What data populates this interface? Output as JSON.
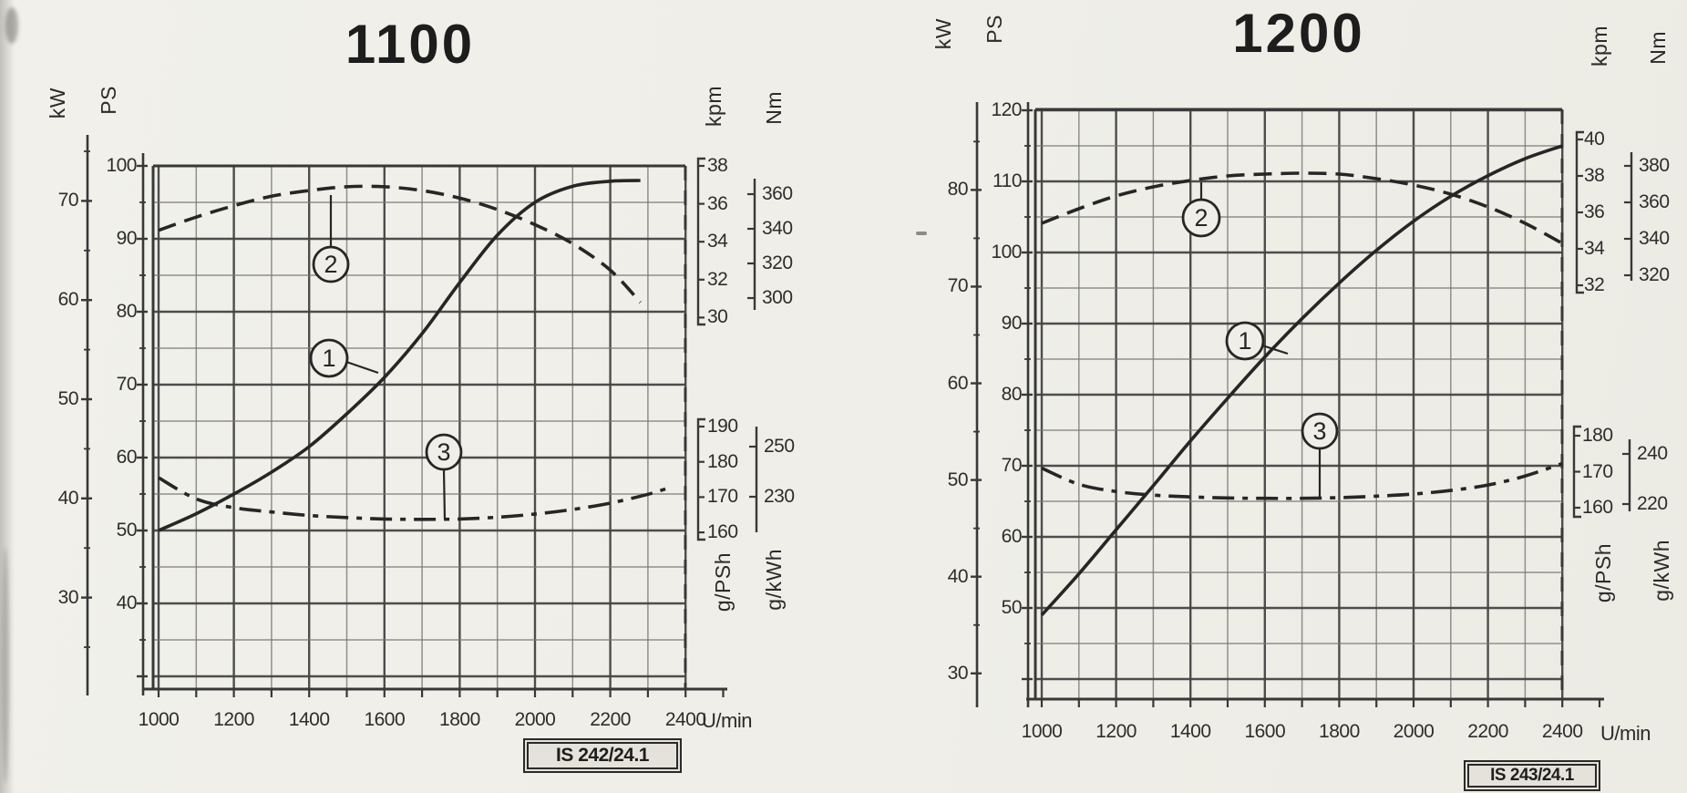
{
  "page": {
    "background": "#efeee8",
    "ink": "#262626",
    "grid_color": "#787878",
    "grid_bold_color": "#454545",
    "frame_color": "#383838"
  },
  "chart_data": [
    {
      "id": "1100",
      "type": "line",
      "title": "1100",
      "badge": "IS 242/24.1",
      "x_axis": {
        "unit": "U/min",
        "range": [
          1000,
          2400
        ],
        "grid_step": 100,
        "ticks": [
          1000,
          1200,
          1400,
          1600,
          1800,
          2000,
          2200,
          2400
        ]
      },
      "ps_grid": {
        "min": 30,
        "max": 100,
        "step": 5
      },
      "left_axes": [
        {
          "unit": "kW",
          "ticks": [
            70,
            60,
            50,
            40,
            30
          ]
        },
        {
          "unit": "PS",
          "ticks": [
            100,
            90,
            80,
            70,
            60,
            50,
            40
          ]
        }
      ],
      "right_axes": [
        {
          "unit": "kpm",
          "ticks": [
            38,
            36,
            34,
            32,
            30
          ]
        },
        {
          "unit": "Nm",
          "ticks": [
            360,
            340,
            320,
            300
          ]
        },
        {
          "unit": "g/PSh",
          "ticks": [
            190,
            180,
            170,
            160
          ]
        },
        {
          "unit": "g/kWh",
          "ticks": [
            250,
            230
          ]
        }
      ],
      "series": [
        {
          "label": "1",
          "unit": "PS",
          "style": "solid",
          "points": [
            [
              1000,
              50
            ],
            [
              1100,
              52.3
            ],
            [
              1200,
              55
            ],
            [
              1300,
              58
            ],
            [
              1400,
              61.5
            ],
            [
              1500,
              66
            ],
            [
              1600,
              71
            ],
            [
              1700,
              77
            ],
            [
              1800,
              84
            ],
            [
              1900,
              90.5
            ],
            [
              2000,
              95
            ],
            [
              2100,
              97.2
            ],
            [
              2200,
              97.9
            ],
            [
              2280,
              98
            ]
          ]
        },
        {
          "label": "2",
          "unit": "kpm",
          "style": "dashed",
          "points": [
            [
              1000,
              34.6
            ],
            [
              1100,
              35.3
            ],
            [
              1200,
              35.9
            ],
            [
              1300,
              36.4
            ],
            [
              1400,
              36.7
            ],
            [
              1500,
              36.9
            ],
            [
              1600,
              36.9
            ],
            [
              1700,
              36.7
            ],
            [
              1800,
              36.3
            ],
            [
              1900,
              35.7
            ],
            [
              2000,
              34.9
            ],
            [
              2100,
              33.9
            ],
            [
              2200,
              32.5
            ],
            [
              2280,
              30.8
            ]
          ]
        },
        {
          "label": "3",
          "unit": "g/PSh",
          "style": "dashdot",
          "points": [
            [
              1000,
              175.5
            ],
            [
              1100,
              169.5
            ],
            [
              1200,
              167
            ],
            [
              1300,
              165.8
            ],
            [
              1400,
              164.8
            ],
            [
              1500,
              164.2
            ],
            [
              1600,
              163.8
            ],
            [
              1700,
              163.7
            ],
            [
              1800,
              163.8
            ],
            [
              1900,
              164.3
            ],
            [
              2000,
              165.2
            ],
            [
              2100,
              166.5
            ],
            [
              2200,
              168.3
            ],
            [
              2300,
              170.8
            ],
            [
              2360,
              172.8
            ]
          ]
        }
      ]
    },
    {
      "id": "1200",
      "type": "line",
      "title": "1200",
      "badge": "IS 243/24.1",
      "x_axis": {
        "unit": "U/min",
        "range": [
          1000,
          2400
        ],
        "grid_step": 100,
        "ticks": [
          1000,
          1200,
          1400,
          1600,
          1800,
          2000,
          2200,
          2400
        ]
      },
      "ps_grid": {
        "min": 40,
        "max": 120,
        "step": 5
      },
      "left_axes": [
        {
          "unit": "kW",
          "ticks": [
            80,
            70,
            60,
            50,
            40,
            30
          ]
        },
        {
          "unit": "PS",
          "ticks": [
            120,
            110,
            100,
            90,
            80,
            70,
            60,
            50
          ]
        }
      ],
      "right_axes": [
        {
          "unit": "kpm",
          "ticks": [
            40,
            38,
            36,
            34,
            32
          ]
        },
        {
          "unit": "Nm",
          "ticks": [
            380,
            360,
            340,
            320
          ]
        },
        {
          "unit": "g/PSh",
          "ticks": [
            180,
            170,
            160
          ]
        },
        {
          "unit": "g/kWh",
          "ticks": [
            240,
            220
          ]
        }
      ],
      "series": [
        {
          "label": "1",
          "unit": "PS",
          "style": "solid",
          "points": [
            [
              1000,
              49
            ],
            [
              1100,
              54.8
            ],
            [
              1200,
              61
            ],
            [
              1300,
              67.2
            ],
            [
              1400,
              73.5
            ],
            [
              1500,
              79.5
            ],
            [
              1600,
              85.3
            ],
            [
              1700,
              90.7
            ],
            [
              1800,
              95.7
            ],
            [
              1900,
              100.3
            ],
            [
              2000,
              104.4
            ],
            [
              2100,
              107.9
            ],
            [
              2200,
              110.8
            ],
            [
              2300,
              113.2
            ],
            [
              2400,
              115
            ]
          ]
        },
        {
          "label": "2",
          "unit": "kpm",
          "style": "dashed",
          "points": [
            [
              1000,
              35.4
            ],
            [
              1100,
              36.2
            ],
            [
              1200,
              36.9
            ],
            [
              1300,
              37.4
            ],
            [
              1400,
              37.75
            ],
            [
              1500,
              38
            ],
            [
              1600,
              38.1
            ],
            [
              1700,
              38.15
            ],
            [
              1800,
              38.1
            ],
            [
              1900,
              37.85
            ],
            [
              2000,
              37.5
            ],
            [
              2100,
              37
            ],
            [
              2200,
              36.3
            ],
            [
              2300,
              35.4
            ],
            [
              2400,
              34.3
            ]
          ]
        },
        {
          "label": "3",
          "unit": "g/PSh",
          "style": "dashdot",
          "points": [
            [
              1000,
              171
            ],
            [
              1100,
              166.5
            ],
            [
              1200,
              164.5
            ],
            [
              1300,
              163.5
            ],
            [
              1400,
              163
            ],
            [
              1500,
              162.7
            ],
            [
              1600,
              162.6
            ],
            [
              1700,
              162.6
            ],
            [
              1800,
              162.8
            ],
            [
              1900,
              163.2
            ],
            [
              2000,
              163.8
            ],
            [
              2100,
              164.8
            ],
            [
              2200,
              166.3
            ],
            [
              2300,
              168.8
            ],
            [
              2400,
              172.3
            ]
          ]
        }
      ]
    }
  ]
}
